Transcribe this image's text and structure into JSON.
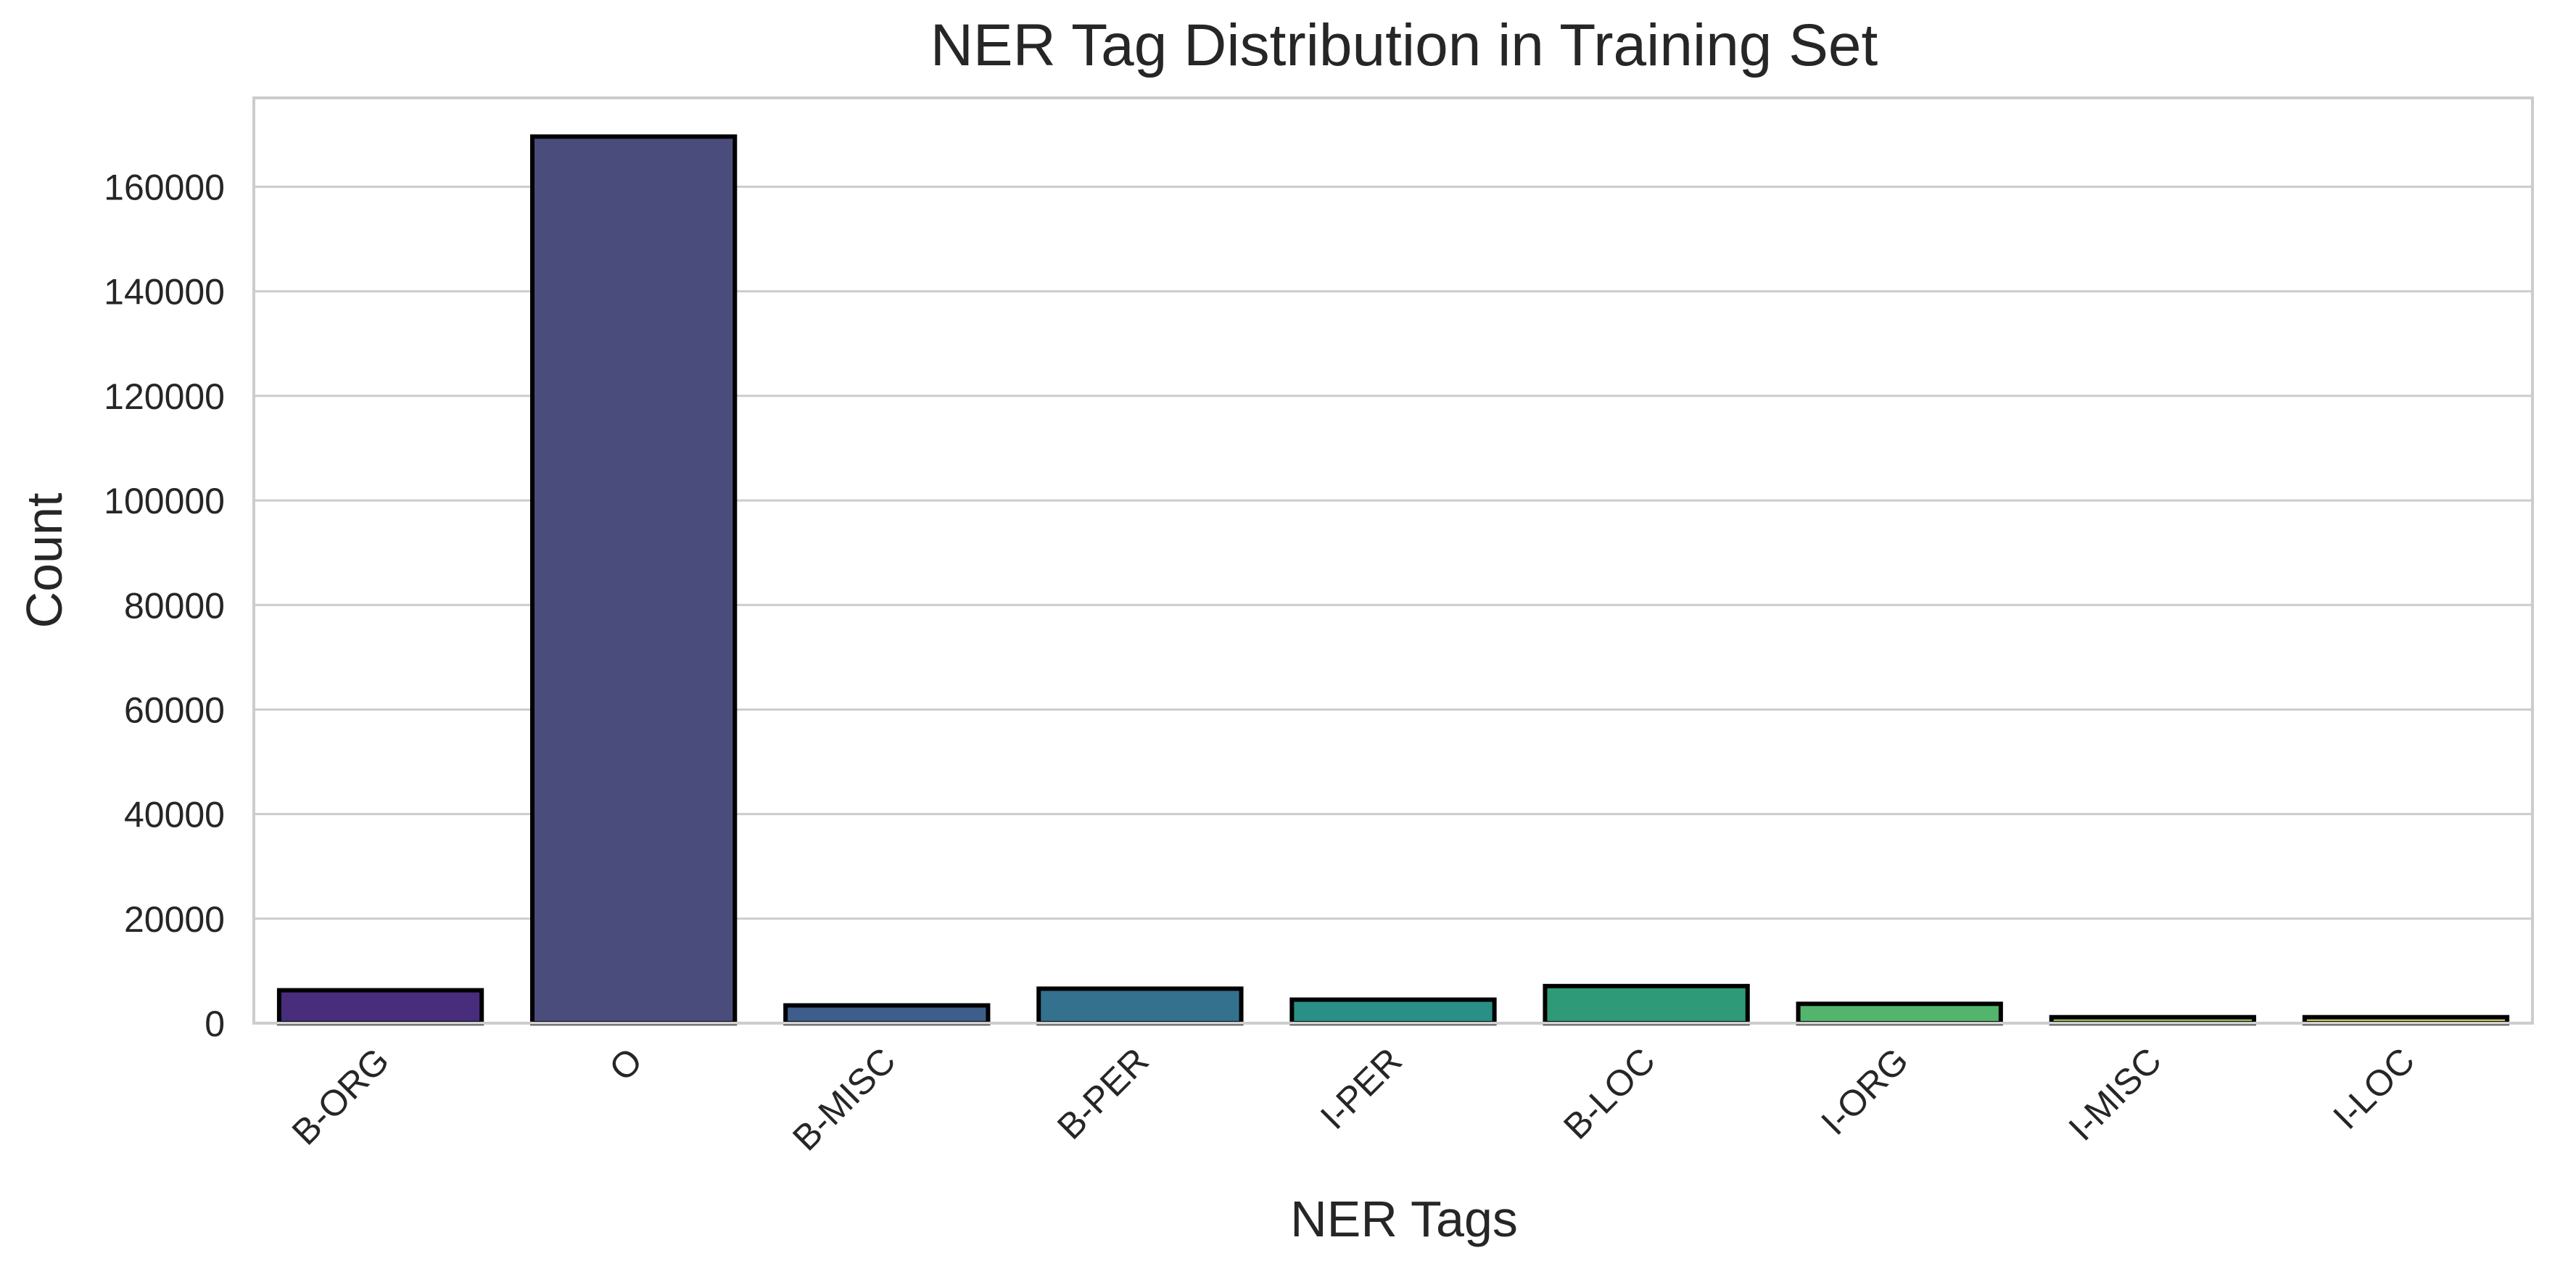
{
  "chart_data": {
    "type": "bar",
    "title": "NER Tag Distribution in Training Set",
    "xlabel": "NER Tags",
    "ylabel": "Count",
    "categories": [
      "B-ORG",
      "O",
      "B-MISC",
      "B-PER",
      "I-PER",
      "B-LOC",
      "I-ORG",
      "I-MISC",
      "I-LOC"
    ],
    "values": [
      6300,
      169600,
      3400,
      6600,
      4500,
      7100,
      3700,
      1150,
      1150
    ],
    "colors": [
      "#472d7b",
      "#4a4c7c",
      "#3e5d8b",
      "#33718f",
      "#2a8f85",
      "#2f9a78",
      "#53b56c",
      "#97c25a",
      "#d0c95a"
    ],
    "ylim": [
      0,
      177000
    ],
    "yticks": [
      0,
      20000,
      40000,
      60000,
      80000,
      100000,
      120000,
      140000,
      160000
    ],
    "grid": true,
    "legend": "none"
  }
}
